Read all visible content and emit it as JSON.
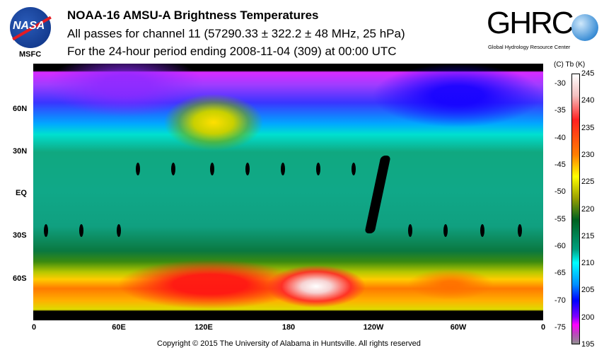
{
  "header": {
    "title": "NOAA-16 AMSU-A Brightness Temperatures",
    "subtitle": "All passes for channel 11 (57290.33 ± 322.2 ± 48 MHz, 25 hPa)",
    "period": "For the 24-hour period ending 2008-11-04 (309) at 00:00 UTC"
  },
  "logos": {
    "nasa": "NASA",
    "msfc": "MSFC",
    "ghrc": "GHRC",
    "ghrc_sub": "Global Hydrology Resource Center"
  },
  "map": {
    "lon_labels": [
      "0",
      "60E",
      "120E",
      "180",
      "120W",
      "60W",
      "0"
    ],
    "lat_labels": [
      "60N",
      "30N",
      "EQ",
      "30S",
      "60S"
    ]
  },
  "colorbar": {
    "units": "(C)  Tb  (K)",
    "kelvin": [
      "245",
      "240",
      "235",
      "230",
      "225",
      "220",
      "215",
      "210",
      "205",
      "200",
      "195"
    ],
    "celsius": [
      "-30",
      "-35",
      "-40",
      "-45",
      "-50",
      "-55",
      "-60",
      "-65",
      "-70",
      "-75"
    ],
    "range_k": [
      195,
      245
    ]
  },
  "footer": {
    "copyright": "Copyright © 2015 The University of Alabama in Huntsville.  All rights reserved"
  }
}
